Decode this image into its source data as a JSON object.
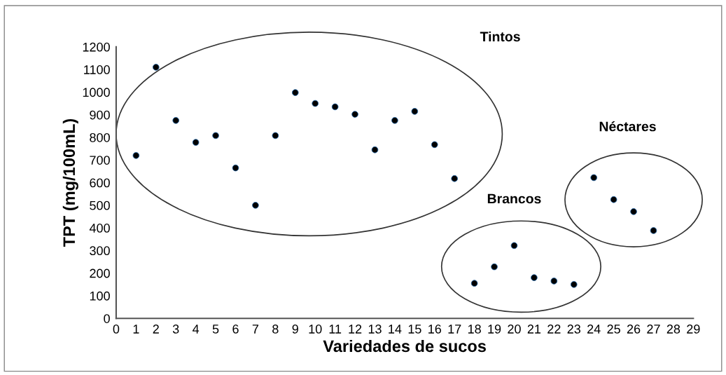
{
  "chart_data": {
    "type": "scatter",
    "xlabel": "Variedades de sucos",
    "ylabel": "TPT (mg/100mL)",
    "x": [
      1,
      2,
      3,
      4,
      5,
      6,
      7,
      8,
      9,
      10,
      11,
      12,
      13,
      14,
      15,
      16,
      17,
      18,
      19,
      20,
      21,
      22,
      23,
      24,
      25,
      26,
      27
    ],
    "series": [
      {
        "color": "#000000",
        "values": [
          720,
          1110,
          875,
          778,
          808,
          665,
          500,
          808,
          998,
          950,
          935,
          902,
          745,
          875,
          915,
          768,
          618,
          155,
          228,
          322,
          180,
          165,
          150,
          622,
          525,
          472,
          388
        ]
      }
    ],
    "xlim": [
      0,
      29
    ],
    "xticks": [
      0,
      1,
      2,
      3,
      4,
      5,
      6,
      7,
      8,
      9,
      10,
      11,
      12,
      13,
      14,
      15,
      16,
      17,
      18,
      19,
      20,
      21,
      22,
      23,
      24,
      25,
      26,
      27,
      28,
      29
    ],
    "ylim": [
      0,
      1200
    ],
    "yticks": [
      0,
      100,
      200,
      300,
      400,
      500,
      600,
      700,
      800,
      900,
      1000,
      1100,
      1200
    ],
    "grid": false,
    "marker": "circle",
    "annotations": [
      "Tintos",
      "Brancos",
      "Néctares"
    ]
  }
}
